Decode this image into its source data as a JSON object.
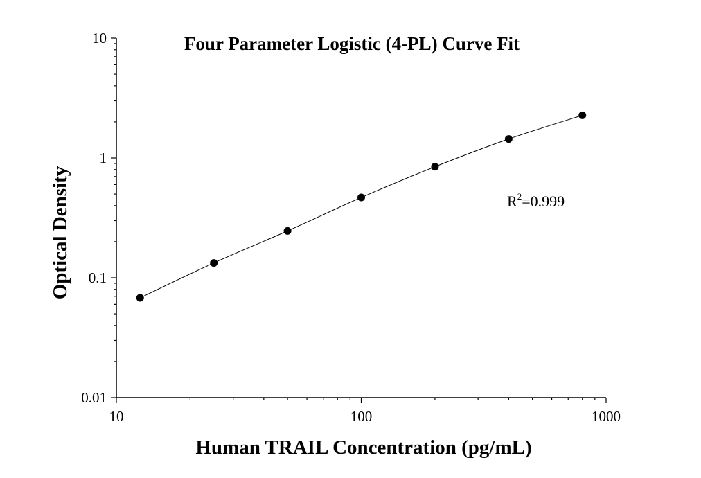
{
  "chart_data": {
    "type": "scatter",
    "title": "Four Parameter Logistic (4-PL) Curve Fit",
    "xlabel": "Human TRAIL Concentration (pg/mL)",
    "ylabel": "Optical Density",
    "xscale": "log",
    "yscale": "log",
    "xlim": [
      10,
      1000
    ],
    "ylim": [
      0.01,
      10
    ],
    "x_ticks": [
      "10",
      "100",
      "1000"
    ],
    "y_ticks": [
      "0.01",
      "0.1",
      "1",
      "10"
    ],
    "grid": false,
    "series": [
      {
        "points": [
          {
            "x": 12.5,
            "y": 0.068
          },
          {
            "x": 25,
            "y": 0.133
          },
          {
            "x": 50,
            "y": 0.246
          },
          {
            "x": 100,
            "y": 0.468
          },
          {
            "x": 200,
            "y": 0.845
          },
          {
            "x": 400,
            "y": 1.44
          },
          {
            "x": 800,
            "y": 2.27
          }
        ],
        "color": "#000000"
      }
    ],
    "fit_curve": {
      "model": "4-PL",
      "color": "#000000"
    },
    "annotation": {
      "base": "R",
      "superscript": "2",
      "value": "=0.999"
    }
  }
}
